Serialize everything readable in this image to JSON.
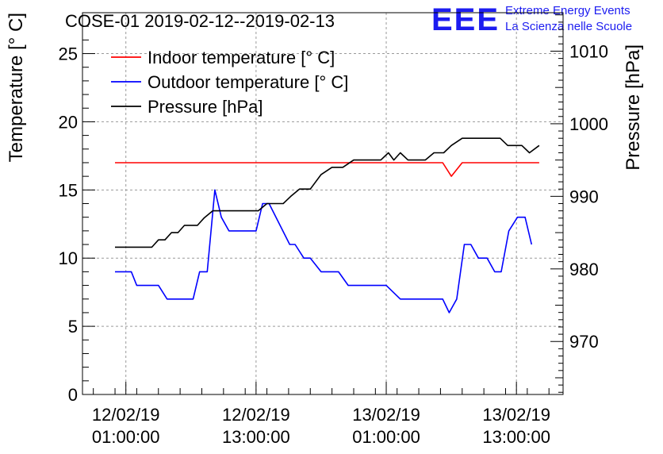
{
  "title": "COSE-01 2019-02-12--2019-02-13",
  "logo": {
    "mark": "EEE",
    "line1": "Extreme Energy Events",
    "line2": "La Scienza nelle Scuole",
    "color": "#1c1cf0"
  },
  "chart_data": {
    "type": "line",
    "x_unit": "hours since 2019-02-12 00:00",
    "xlim": [
      -3.0,
      41.3
    ],
    "x_ticks": [
      {
        "x": 1,
        "date": "12/02/19",
        "time": "01:00:00"
      },
      {
        "x": 13,
        "date": "12/02/19",
        "time": "13:00:00"
      },
      {
        "x": 25,
        "date": "13/02/19",
        "time": "01:00:00"
      },
      {
        "x": 37,
        "date": "13/02/19",
        "time": "13:00:00"
      }
    ],
    "y_left": {
      "label": "Temperature [° C]",
      "lim": [
        0,
        28
      ],
      "ticks": [
        0,
        5,
        10,
        15,
        20,
        25
      ]
    },
    "y_right": {
      "label": "Pressure [hPa]",
      "lim": [
        962.7,
        1015.3
      ],
      "ticks": [
        970,
        980,
        990,
        1000,
        1010
      ]
    },
    "grid": true,
    "legend_position": "top-left",
    "series": [
      {
        "name": "Indoor temperature [° C]",
        "axis": "left",
        "color": "#ff0000",
        "points": [
          [
            0,
            17
          ],
          [
            30.2,
            17
          ],
          [
            31.0,
            16
          ],
          [
            32.0,
            17
          ],
          [
            39.1,
            17
          ]
        ]
      },
      {
        "name": "Outdoor temperature [° C]",
        "axis": "left",
        "color": "#0000ff",
        "points": [
          [
            0,
            9
          ],
          [
            1.5,
            9
          ],
          [
            2,
            8
          ],
          [
            4,
            8
          ],
          [
            4.8,
            7
          ],
          [
            7.2,
            7
          ],
          [
            7.8,
            9
          ],
          [
            8.5,
            9
          ],
          [
            9.2,
            15
          ],
          [
            9.8,
            13
          ],
          [
            10.5,
            12
          ],
          [
            13,
            12
          ],
          [
            13.6,
            14
          ],
          [
            14.2,
            14
          ],
          [
            16.1,
            11
          ],
          [
            16.6,
            11
          ],
          [
            17.4,
            10
          ],
          [
            18,
            10
          ],
          [
            19,
            9
          ],
          [
            20.6,
            9
          ],
          [
            21.5,
            8
          ],
          [
            25,
            8
          ],
          [
            26.3,
            7
          ],
          [
            30.2,
            7
          ],
          [
            30.8,
            6
          ],
          [
            31.5,
            7
          ],
          [
            32.2,
            11
          ],
          [
            32.8,
            11
          ],
          [
            33.5,
            10
          ],
          [
            34.3,
            10
          ],
          [
            35,
            9
          ],
          [
            35.6,
            9
          ],
          [
            36.3,
            12
          ],
          [
            37.1,
            13
          ],
          [
            37.8,
            13
          ],
          [
            38.4,
            11
          ]
        ]
      },
      {
        "name": "Pressure [hPa]",
        "axis": "right",
        "color": "#000000",
        "points": [
          [
            0,
            983
          ],
          [
            3.4,
            983
          ],
          [
            4.0,
            984
          ],
          [
            4.6,
            984
          ],
          [
            5.2,
            985
          ],
          [
            5.8,
            985
          ],
          [
            6.4,
            986
          ],
          [
            7.6,
            986
          ],
          [
            8.2,
            987
          ],
          [
            9.0,
            988
          ],
          [
            13.2,
            988
          ],
          [
            14.0,
            989
          ],
          [
            15.5,
            989
          ],
          [
            16.2,
            990
          ],
          [
            17.0,
            991
          ],
          [
            18.0,
            991
          ],
          [
            19.0,
            993
          ],
          [
            20.0,
            994
          ],
          [
            21.0,
            994
          ],
          [
            22.0,
            995
          ],
          [
            24.5,
            995
          ],
          [
            25.2,
            996
          ],
          [
            25.7,
            995
          ],
          [
            26.3,
            996
          ],
          [
            27.0,
            995
          ],
          [
            28.6,
            995
          ],
          [
            29.4,
            996
          ],
          [
            30.3,
            996
          ],
          [
            31.0,
            997
          ],
          [
            32.0,
            998
          ],
          [
            35.5,
            998
          ],
          [
            36.2,
            997
          ],
          [
            37.5,
            997
          ],
          [
            38.2,
            996
          ],
          [
            39.1,
            997
          ]
        ]
      }
    ]
  }
}
